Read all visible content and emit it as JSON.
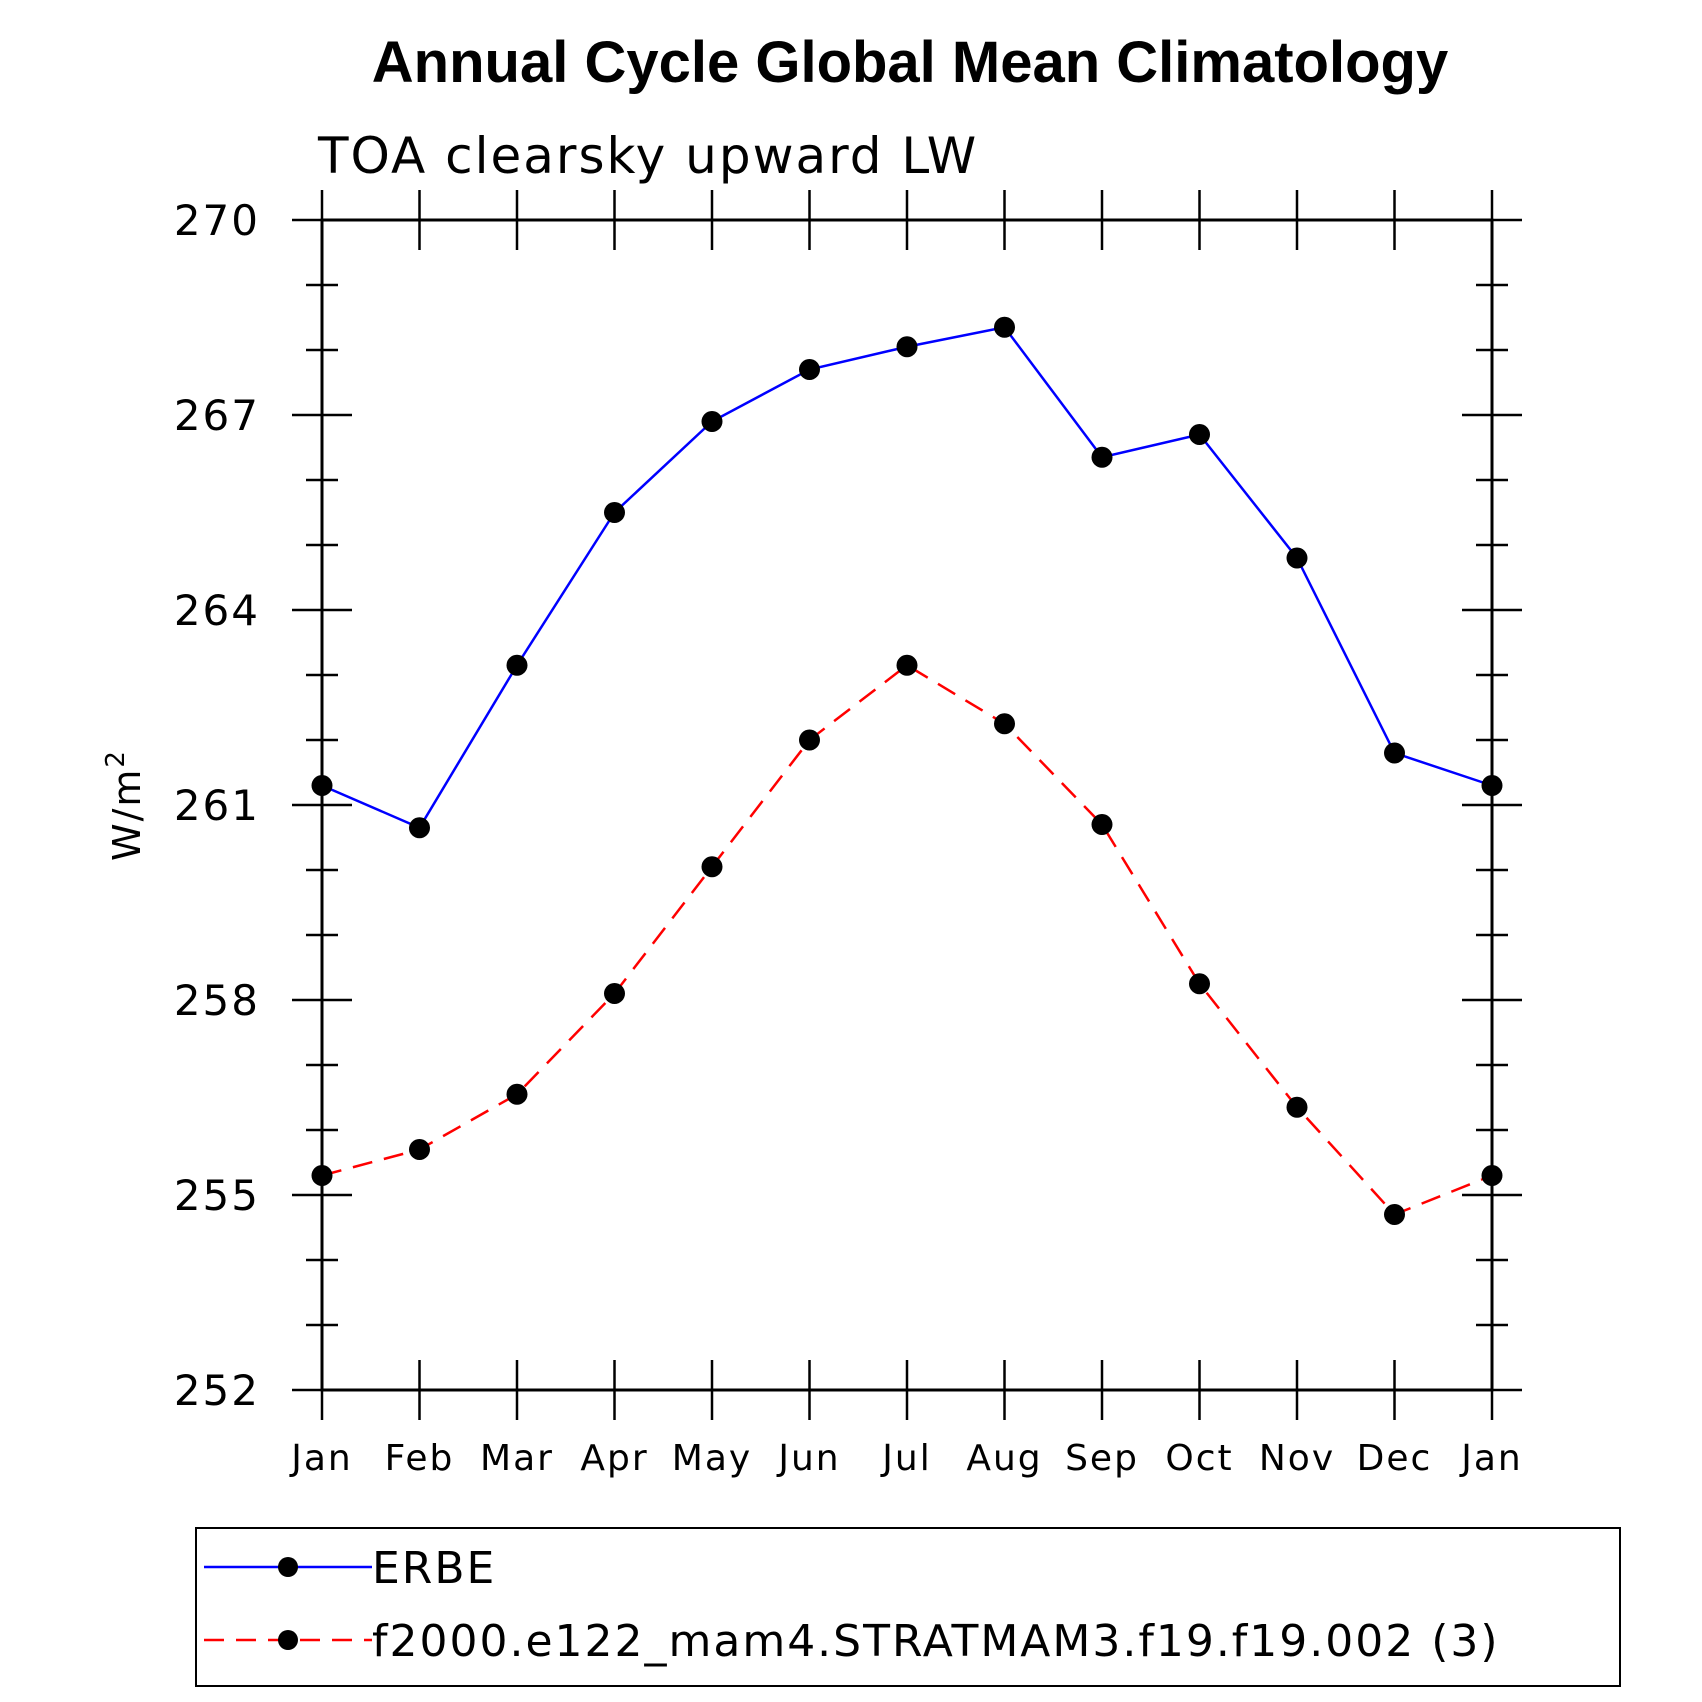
{
  "chart_data": {
    "type": "line",
    "title": "Annual Cycle Global Mean Climatology",
    "subtitle": "TOA clearsky upward LW",
    "ylabel": "W/m",
    "ylabel_superscript": "2",
    "xlabel": "",
    "ylim": [
      252,
      270
    ],
    "yticks": [
      252,
      255,
      258,
      261,
      264,
      267,
      270
    ],
    "ytick_labels": [
      "252",
      "255",
      "258",
      "261",
      "264",
      "267",
      "270"
    ],
    "categories": [
      "Jan",
      "Feb",
      "Mar",
      "Apr",
      "May",
      "Jun",
      "Jul",
      "Aug",
      "Sep",
      "Oct",
      "Nov",
      "Dec",
      "Jan"
    ],
    "series": [
      {
        "name": "ERBE",
        "color": "#0000ff",
        "dash": "solid",
        "marker": "filled-circle",
        "values": [
          261.3,
          260.65,
          263.15,
          265.5,
          266.9,
          267.7,
          268.05,
          268.35,
          266.35,
          266.7,
          264.8,
          261.8,
          261.3
        ]
      },
      {
        "name": "f2000.e122_mam4.STRATMAM3.f19.f19.002 (3)",
        "color": "#ff0000",
        "dash": "dashed",
        "marker": "filled-circle",
        "values": [
          255.3,
          255.7,
          256.55,
          258.1,
          260.05,
          262.0,
          263.15,
          262.25,
          260.7,
          258.25,
          256.35,
          254.7,
          255.3
        ]
      }
    ],
    "legend_position": "bottom"
  }
}
